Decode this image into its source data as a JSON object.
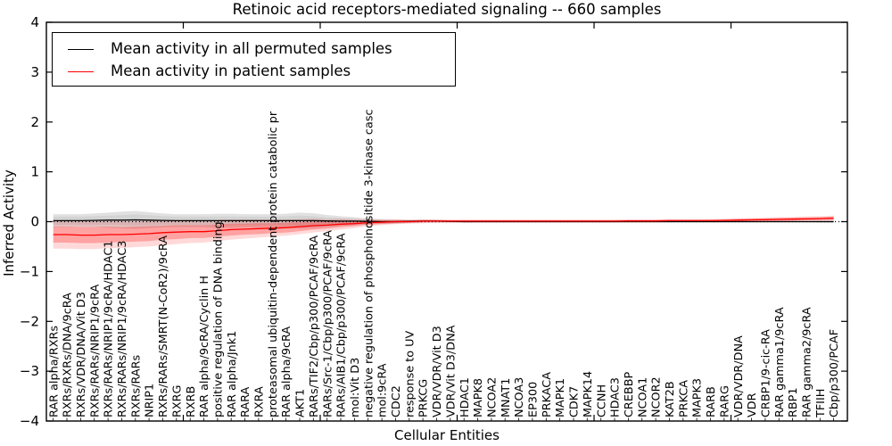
{
  "chart_data": {
    "type": "line",
    "title": "Retinoic acid receptors-mediated signaling -- 660 samples",
    "xlabel": "Cellular Entities",
    "ylabel": "Inferred Activity",
    "ylim": [
      -4,
      4
    ],
    "xlim": [
      0,
      58.5
    ],
    "yticks": [
      4,
      3,
      2,
      1,
      0,
      -1,
      -2,
      -3,
      -4
    ],
    "ytick_labels": [
      "4",
      "3",
      "2",
      "1",
      "0",
      "−1",
      "−2",
      "−3",
      "−4"
    ],
    "xticks_major": [
      10,
      20,
      30,
      40,
      50
    ],
    "zero_line": true,
    "legend_position": "upper left",
    "categories": [
      "RAR alpha/RXRs",
      "RXRs/RXRs/DNA/9cRA",
      "RXRs/VDR/DNA/Vit D3",
      "RXRs/RARs/NRIP1/9cRA",
      "RXRs/RARs/NRIP1/9cRA/HDAC1",
      "RXRs/RARs/NRIP1/9cRA/HDAC3",
      "RXRs/RARs",
      "NRIP1",
      "RXRs/RARs/SMRT(N-CoR2)/9cRA",
      "RXRG",
      "RXRB",
      "RAR alpha/9cRA/Cyclin H",
      "positive regulation of DNA binding",
      "RAR alpha/Jnk1",
      "RARA",
      "RXRA",
      "proteasomal ubiquitin-dependent protein catabolic pr",
      "RAR alpha/9cRA",
      "AKT1",
      "RARs/TIF2/Cbp/p300/PCAF/9cRA",
      "RARs/Src-1/Cbp/p300/PCAF/9cRA",
      "RARs/AIB1/Cbp/p300/PCAF/9cRA",
      "mol:Vit D3",
      "negative regulation of phosphoinositide 3-kinase casc",
      "mol:9cRA",
      "CDC2",
      "response to UV",
      "PRKCG",
      "VDR/VDR/Vit D3",
      "VDR/Vit D3/DNA",
      "HDAC1",
      "MAPK8",
      "NCOA2",
      "MNAT1",
      "NCOA3",
      "EP300",
      "PRKACA",
      "MAPK1",
      "CDK7",
      "MAPK14",
      "CCNH",
      "HDAC3",
      "CREBBP",
      "NCOA1",
      "NCOR2",
      "KAT2B",
      "PRKCA",
      "MAPK3",
      "RARB",
      "RARG",
      "VDR/VDR/DNA",
      "VDR",
      "CRBP1/9-cic-RA",
      "RAR gamma1/9cRA",
      "RBP1",
      "RAR gamma2/9cRA",
      "TFIIH",
      "Cbp/p300/PCAF"
    ],
    "series": [
      {
        "key": "permuted",
        "name": "Mean activity in all permuted samples",
        "color": "#000000",
        "values": [
          0.02,
          0.02,
          0.02,
          0.025,
          0.03,
          0.03,
          0.035,
          0.03,
          0.025,
          0.02,
          0.02,
          0.02,
          0.02,
          0.02,
          0.02,
          0.02,
          0.02,
          0.02,
          0.02,
          0.02,
          0.015,
          0.01,
          0.01,
          0.005,
          0.0,
          0.0,
          0.005,
          0.01,
          0.01,
          0.005,
          0,
          0,
          0,
          0,
          0,
          0,
          0,
          0,
          0,
          0,
          0,
          0,
          0,
          0,
          0,
          0,
          0,
          0,
          0,
          0,
          0,
          0,
          0,
          0,
          0,
          0,
          0,
          0
        ],
        "bands": [
          {
            "label": "outer",
            "color": "#aaaaaa",
            "opacity": 0.35,
            "offsets": [
              0.13,
              0.13,
              0.13,
              0.14,
              0.15,
              0.17,
              0.18,
              0.16,
              0.14,
              0.13,
              0.13,
              0.13,
              0.14,
              0.14,
              0.13,
              0.13,
              0.13,
              0.14,
              0.16,
              0.15,
              0.12,
              0.1,
              0.08,
              0.06,
              0.05,
              0.04,
              0.03,
              0.03,
              0.03,
              0.02,
              0.02,
              0.015,
              0.015,
              0.015,
              0.015,
              0.015,
              0.015,
              0.015,
              0.015,
              0.015,
              0.015,
              0.015,
              0.015,
              0.015,
              0.015,
              0.015,
              0.015,
              0.015,
              0.015,
              0.015,
              0.015,
              0.015,
              0.015,
              0.015,
              0.015,
              0.015,
              0.02,
              0.02
            ]
          },
          {
            "label": "inner",
            "color": "#aaaaaa",
            "opacity": 0.25,
            "offsets": [
              0.08,
              0.08,
              0.08,
              0.085,
              0.09,
              0.1,
              0.11,
              0.1,
              0.085,
              0.08,
              0.08,
              0.08,
              0.085,
              0.085,
              0.08,
              0.08,
              0.08,
              0.085,
              0.1,
              0.09,
              0.07,
              0.06,
              0.05,
              0.04,
              0.03,
              0.025,
              0.02,
              0.02,
              0.02,
              0.015,
              0.012,
              0.01,
              0.01,
              0.01,
              0.01,
              0.01,
              0.01,
              0.01,
              0.01,
              0.01,
              0.01,
              0.01,
              0.01,
              0.01,
              0.01,
              0.01,
              0.01,
              0.01,
              0.01,
              0.01,
              0.01,
              0.01,
              0.01,
              0.01,
              0.01,
              0.01,
              0.012,
              0.012
            ]
          }
        ]
      },
      {
        "key": "patient",
        "name": "Mean activity in patient samples",
        "color": "#ff0000",
        "values": [
          -0.26,
          -0.26,
          -0.27,
          -0.27,
          -0.26,
          -0.26,
          -0.25,
          -0.24,
          -0.22,
          -0.21,
          -0.2,
          -0.2,
          -0.18,
          -0.16,
          -0.15,
          -0.14,
          -0.13,
          -0.12,
          -0.1,
          -0.08,
          -0.07,
          -0.05,
          -0.04,
          -0.02,
          -0.01,
          0.0,
          0.0,
          0.01,
          0.01,
          0.01,
          0.01,
          0.01,
          0.01,
          0.01,
          0.01,
          0.01,
          0.01,
          0.01,
          0.01,
          0.01,
          0.01,
          0.01,
          0.015,
          0.015,
          0.015,
          0.02,
          0.02,
          0.02,
          0.02,
          0.025,
          0.03,
          0.035,
          0.04,
          0.045,
          0.05,
          0.055,
          0.06,
          0.07
        ],
        "bands": [
          {
            "label": "outer",
            "color": "#ff0000",
            "opacity": 0.15,
            "offsets": [
              0.28,
              0.28,
              0.28,
              0.28,
              0.27,
              0.27,
              0.26,
              0.26,
              0.25,
              0.24,
              0.23,
              0.22,
              0.21,
              0.2,
              0.19,
              0.18,
              0.17,
              0.16,
              0.15,
              0.14,
              0.12,
              0.11,
              0.09,
              0.07,
              0.06,
              0.05,
              0.04,
              0.04,
              0.03,
              0.03,
              0.03,
              0.03,
              0.03,
              0.03,
              0.03,
              0.03,
              0.03,
              0.03,
              0.03,
              0.03,
              0.03,
              0.03,
              0.03,
              0.03,
              0.03,
              0.03,
              0.03,
              0.03,
              0.035,
              0.035,
              0.04,
              0.04,
              0.04,
              0.045,
              0.045,
              0.05,
              0.05,
              0.05
            ]
          },
          {
            "label": "inner",
            "color": "#ff0000",
            "opacity": 0.25,
            "offsets": [
              0.16,
              0.16,
              0.16,
              0.16,
              0.16,
              0.15,
              0.15,
              0.15,
              0.14,
              0.14,
              0.13,
              0.13,
              0.12,
              0.12,
              0.11,
              0.11,
              0.1,
              0.1,
              0.09,
              0.08,
              0.07,
              0.06,
              0.05,
              0.04,
              0.035,
              0.03,
              0.025,
              0.02,
              0.02,
              0.02,
              0.02,
              0.02,
              0.02,
              0.02,
              0.02,
              0.02,
              0.02,
              0.02,
              0.02,
              0.02,
              0.02,
              0.02,
              0.02,
              0.02,
              0.02,
              0.02,
              0.02,
              0.02,
              0.02,
              0.02,
              0.025,
              0.025,
              0.025,
              0.03,
              0.03,
              0.03,
              0.03,
              0.035
            ]
          }
        ]
      }
    ]
  }
}
